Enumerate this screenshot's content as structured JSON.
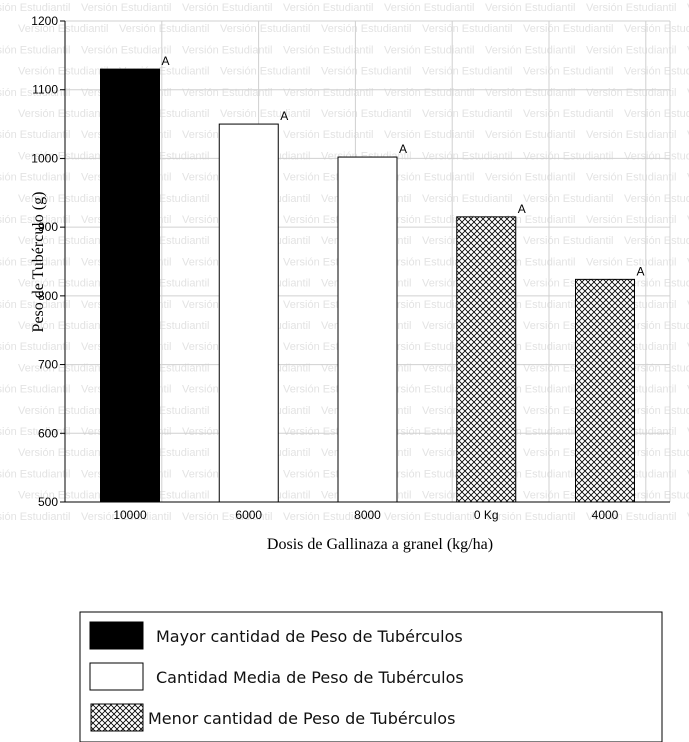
{
  "chart_data": {
    "type": "bar",
    "xlabel": "Dosis de Gallinaza a granel (kg/ha)",
    "ylabel": "Peso de Tubérculo (g)",
    "ylim": [
      500,
      1200
    ],
    "yticks": [
      500,
      600,
      700,
      800,
      900,
      1000,
      1100,
      1200
    ],
    "grid": true,
    "categories": [
      "10000",
      "6000",
      "8000",
      "0 Kg",
      "4000"
    ],
    "values": [
      1130,
      1050,
      1002,
      915,
      824
    ],
    "group_letters": [
      "A",
      "A",
      "A",
      "A",
      "A"
    ],
    "fills": [
      "solid-black",
      "white",
      "white",
      "crosshatch",
      "crosshatch"
    ],
    "legend_position": "bottom",
    "legend": [
      {
        "fill": "solid-black",
        "label": "Mayor cantidad de Peso de Tubérculos"
      },
      {
        "fill": "white",
        "label": "Cantidad Media de Peso de Tubérculos"
      },
      {
        "fill": "crosshatch",
        "label": "Menor cantidad de Peso de Tubérculos"
      }
    ]
  },
  "watermark": "Versión Estudiantil"
}
